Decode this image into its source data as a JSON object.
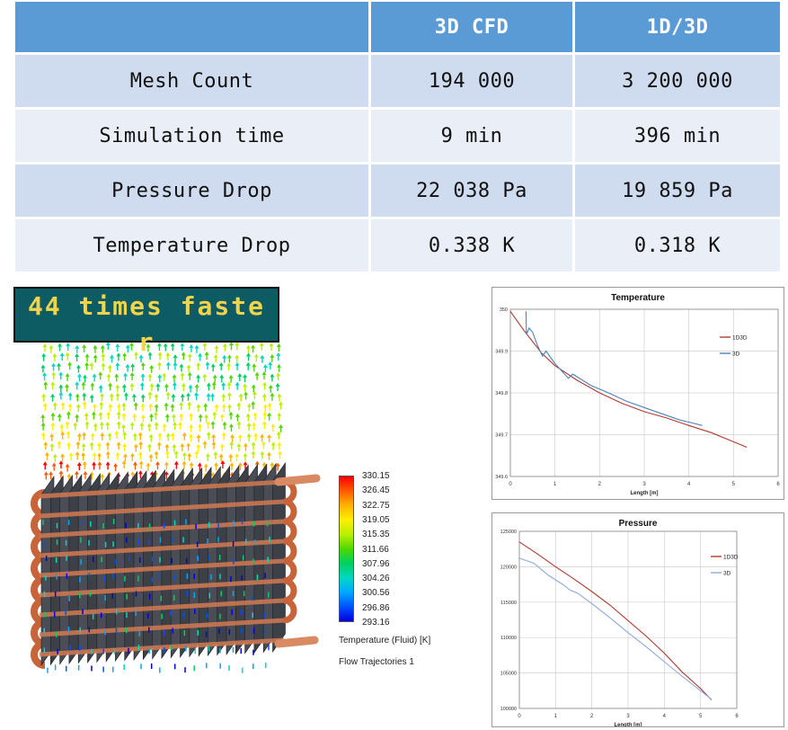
{
  "table": {
    "headers": [
      "",
      "3D CFD",
      "1D/3D"
    ],
    "rows": [
      {
        "label": "Mesh Count",
        "cfd": "194 000",
        "od": "3 200 000"
      },
      {
        "label": "Simulation time",
        "cfd": "9 min",
        "od": "396 min"
      },
      {
        "label": "Pressure Drop",
        "cfd": "22 038 Pa",
        "od": "19 859 Pa"
      },
      {
        "label": "Temperature Drop",
        "cfd": "0.338 K",
        "od": "0.318 K"
      }
    ]
  },
  "banner": {
    "text": "44 times faster"
  },
  "legend": {
    "values": [
      "330.15",
      "326.45",
      "322.75",
      "319.05",
      "315.35",
      "311.66",
      "307.96",
      "304.26",
      "300.56",
      "296.86",
      "293.16"
    ],
    "colors": [
      "#ff0000",
      "#ff5a00",
      "#ffb400",
      "#ffee00",
      "#b8f000",
      "#4fd800",
      "#00d060",
      "#00d8c0",
      "#00a8ff",
      "#0050ff",
      "#0000e0"
    ],
    "title": "Temperature (Fluid) [K]",
    "subtitle": "Flow Trajectories 1"
  },
  "chart_data": [
    {
      "type": "line",
      "title": "Temperature",
      "xlabel": "Length [m]",
      "ylabel": "",
      "xlim": [
        0,
        6
      ],
      "ylim": [
        349.6,
        350
      ],
      "xticks": [
        "0",
        "1",
        "2",
        "3",
        "4",
        "5",
        "6"
      ],
      "yticks": [
        "349.6",
        "349.7",
        "349.8",
        "349.9",
        "350"
      ],
      "grid": true,
      "legend_position": "top-right",
      "series": [
        {
          "name": "1D3D",
          "color": "#b03a2e",
          "x": [
            0,
            0.3,
            0.7,
            1.0,
            1.5,
            2.0,
            2.5,
            3.0,
            3.5,
            4.0,
            4.5,
            5.0,
            5.3
          ],
          "y": [
            349.995,
            349.95,
            349.895,
            349.865,
            349.83,
            349.8,
            349.775,
            349.755,
            349.74,
            349.722,
            349.705,
            349.683,
            349.67
          ]
        },
        {
          "name": "3D",
          "color": "#4f81bd",
          "x": [
            0.35,
            0.36,
            0.42,
            0.5,
            0.6,
            0.72,
            0.8,
            1.0,
            1.3,
            1.4,
            1.8,
            2.2,
            2.6,
            3.0,
            3.4,
            3.8,
            4.0,
            4.3
          ],
          "y": [
            349.995,
            349.94,
            349.955,
            349.945,
            349.915,
            349.888,
            349.9,
            349.87,
            349.835,
            349.845,
            349.818,
            349.8,
            349.78,
            349.765,
            349.75,
            349.735,
            349.73,
            349.722
          ]
        }
      ]
    },
    {
      "type": "line",
      "title": "Pressure",
      "xlabel": "Length [m]",
      "ylabel": "",
      "xlim": [
        0,
        6
      ],
      "ylim": [
        100000,
        125000
      ],
      "xticks": [
        "0",
        "1",
        "2",
        "3",
        "4",
        "5",
        "6"
      ],
      "yticks": [
        "100000",
        "105000",
        "110000",
        "115000",
        "120000",
        "125000"
      ],
      "grid": true,
      "legend_position": "top-right",
      "series": [
        {
          "name": "1D3D",
          "color": "#b03a2e",
          "x": [
            0,
            0.5,
            1.0,
            1.5,
            2.0,
            2.5,
            3.0,
            3.5,
            4.0,
            4.5,
            5.0,
            5.3
          ],
          "y": [
            123500,
            121800,
            120000,
            118300,
            116500,
            114600,
            112400,
            110200,
            107800,
            105100,
            102800,
            101200
          ]
        },
        {
          "name": "3D",
          "color": "#8ea9db",
          "x": [
            0,
            0.4,
            0.8,
            1.2,
            1.4,
            1.6,
            2.0,
            2.5,
            3.0,
            3.5,
            4.0,
            4.5,
            5.0,
            5.3
          ],
          "y": [
            121200,
            120500,
            118800,
            117500,
            116700,
            116300,
            114800,
            112800,
            110700,
            108700,
            106600,
            104500,
            102500,
            101300
          ]
        }
      ]
    }
  ]
}
